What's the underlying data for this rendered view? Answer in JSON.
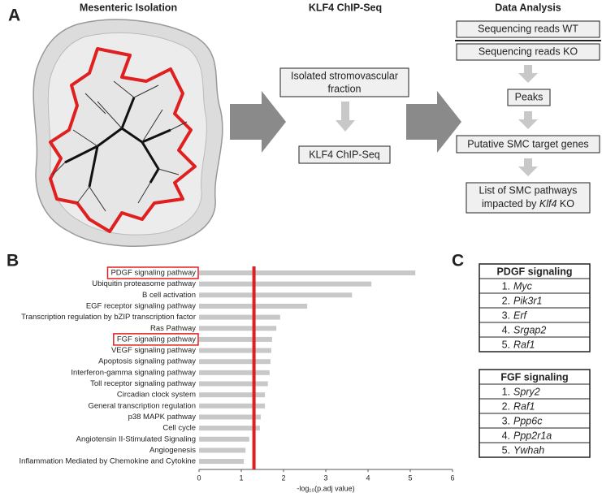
{
  "panel_a": {
    "label": "A",
    "titles": [
      "Mesenteric Isolation",
      "KLF4 ChIP-Seq",
      "Data Analysis"
    ],
    "chip_steps": [
      [
        "Isolated stromovascular",
        "fraction"
      ],
      [
        "KLF4 ChIP-Seq"
      ]
    ],
    "analysis_steps": {
      "reads_wt": "Sequencing reads WT",
      "reads_ko": "Sequencing reads KO",
      "peaks": "Peaks",
      "targets": "Putative SMC target genes",
      "pathways_line1": "List of SMC pathways",
      "pathways_line2": [
        "impacted by ",
        "Klf4",
        " KO"
      ]
    }
  },
  "chart_data": {
    "type": "hbar",
    "panel_label": "B",
    "x_label": "-log₁₀(p.adj value)",
    "categories": [
      "PDGF signaling pathway",
      "Ubiquitin proteasome pathway",
      "B cell activation",
      "EGF receptor signaling pathway",
      "Transcription regulation by bZIP transcription factor",
      "Ras Pathway",
      "FGF signaling pathway",
      "VEGF signaling pathway",
      "Apoptosis signaling pathway",
      "Interferon-gamma signaling pathway",
      "Toll receptor signaling pathway",
      "Circadian clock system",
      "General transcription regulation",
      "p38 MAPK pathway",
      "Cell cycle",
      "Angiotensin II-Stimulated Signaling",
      "Angiogenesis",
      "Inflammation Mediated by Chemokine and Cytokine"
    ],
    "values": [
      5.12,
      4.08,
      3.62,
      2.56,
      1.92,
      1.83,
      1.73,
      1.71,
      1.69,
      1.67,
      1.63,
      1.56,
      1.56,
      1.46,
      1.44,
      1.19,
      1.1,
      1.06
    ],
    "color": "#c8c8c8",
    "threshold": 1.3,
    "threshold_color": "#e02020",
    "highlight": [
      0,
      6
    ],
    "highlight_color": "#e02020",
    "xlim": [
      0,
      6
    ],
    "xticks": [
      0,
      1,
      2,
      3,
      4,
      5,
      6
    ]
  },
  "panel_c": {
    "label": "C",
    "tables": [
      {
        "title": "PDGF signaling",
        "rows": [
          {
            "num": "1.",
            "gene": "Myc"
          },
          {
            "num": "2.",
            "gene": "Pik3r1"
          },
          {
            "num": "3.",
            "gene": "Erf"
          },
          {
            "num": "4.",
            "gene": "Srgap2"
          },
          {
            "num": "5.",
            "gene": "Raf1"
          }
        ]
      },
      {
        "title": "FGF signaling",
        "rows": [
          {
            "num": "1.",
            "gene": "Spry2"
          },
          {
            "num": "2.",
            "gene": "Raf1"
          },
          {
            "num": "3.",
            "gene": "Ppp6c"
          },
          {
            "num": "4.",
            "gene": "Ppp2r1a"
          },
          {
            "num": "5.",
            "gene": "Ywhah"
          }
        ]
      }
    ]
  }
}
